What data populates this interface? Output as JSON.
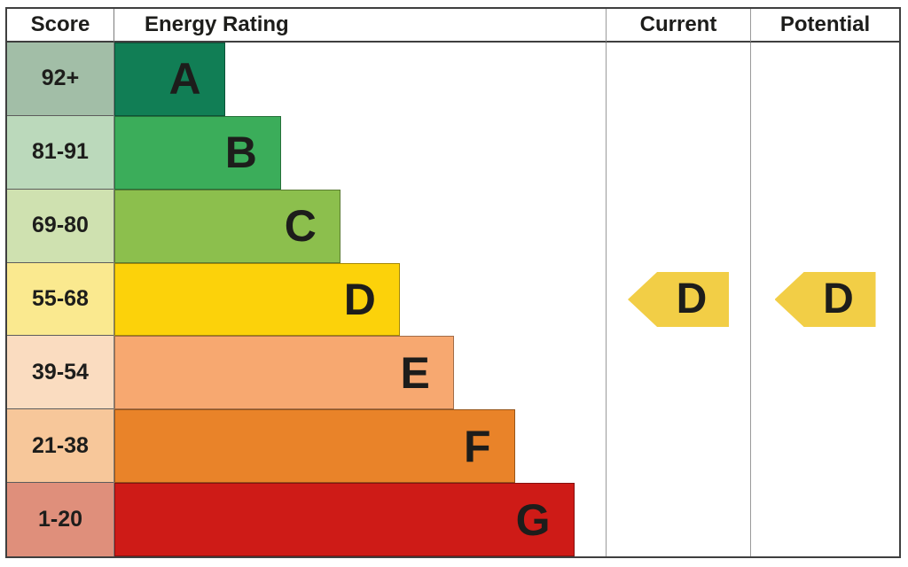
{
  "chart_data": {
    "type": "bar",
    "title": "Energy Rating",
    "columns": [
      "Score",
      "Energy Rating",
      "Current",
      "Potential"
    ],
    "bands": [
      {
        "letter": "A",
        "score": "92+",
        "bar_color": "#117E55",
        "score_bg": "#A2BEA7",
        "width_pct": 22.5
      },
      {
        "letter": "B",
        "score": "81-91",
        "bar_color": "#3BAD5A",
        "score_bg": "#BBD9BB",
        "width_pct": 33.9
      },
      {
        "letter": "C",
        "score": "69-80",
        "bar_color": "#8CBF4D",
        "score_bg": "#CFE1B0",
        "width_pct": 46.0
      },
      {
        "letter": "D",
        "score": "55-68",
        "bar_color": "#FCD20A",
        "score_bg": "#FAE98F",
        "width_pct": 58.1
      },
      {
        "letter": "E",
        "score": "39-54",
        "bar_color": "#F7A870",
        "score_bg": "#FADCC0",
        "width_pct": 69.1
      },
      {
        "letter": "F",
        "score": "21-38",
        "bar_color": "#E98329",
        "score_bg": "#F7C79A",
        "width_pct": 81.5
      },
      {
        "letter": "G",
        "score": "1-20",
        "bar_color": "#CE1B17",
        "score_bg": "#DF8F7B",
        "width_pct": 93.6
      }
    ],
    "current": {
      "rating": "D",
      "score_band": "55-68",
      "arrow_color": "#F2CE46"
    },
    "potential": {
      "rating": "D",
      "score_band": "55-68",
      "arrow_color": "#F2CE46"
    },
    "layout": {
      "legend": "none",
      "grid": "off",
      "border_color": "#3F3F3F"
    }
  }
}
